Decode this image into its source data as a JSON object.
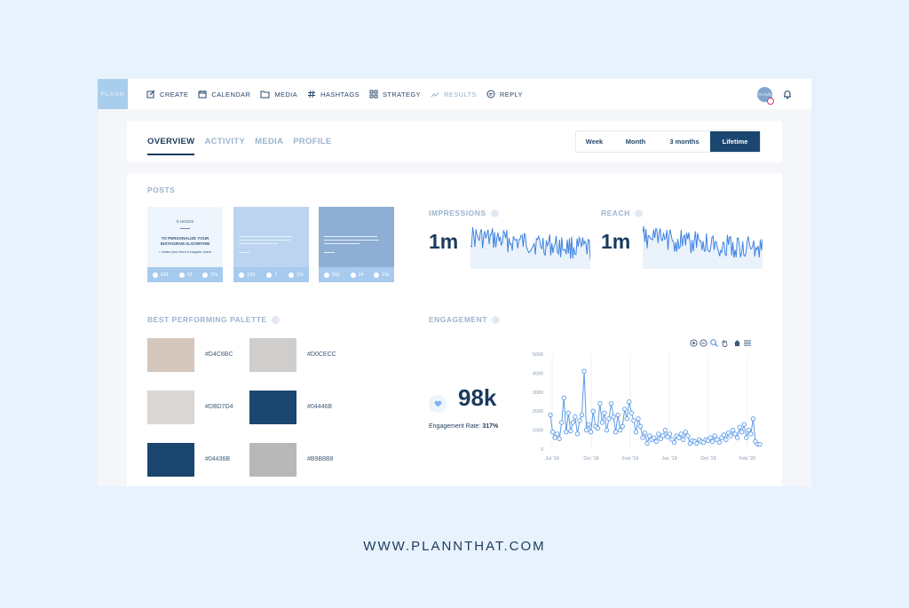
{
  "app": {
    "logo_text": "PLANN",
    "avatar_text": "PLANN",
    "nav": [
      {
        "label": "CREATE",
        "icon": "edit-icon"
      },
      {
        "label": "CALENDAR",
        "icon": "calendar-icon"
      },
      {
        "label": "MEDIA",
        "icon": "folder-icon"
      },
      {
        "label": "HASHTAGS",
        "icon": "hash-icon"
      },
      {
        "label": "STRATEGY",
        "icon": "grid-icon"
      },
      {
        "label": "RESULTS",
        "icon": "trend-icon",
        "active": true
      },
      {
        "label": "REPLY",
        "icon": "chat-icon"
      }
    ]
  },
  "tabs": {
    "items": [
      "OVERVIEW",
      "ACTIVITY",
      "MEDIA",
      "PROFILE"
    ],
    "active": "OVERVIEW"
  },
  "ranges": {
    "items": [
      "Week",
      "Month",
      "3 months",
      "Lifetime"
    ],
    "active": "Lifetime"
  },
  "posts": {
    "label": "POSTS",
    "items": [
      {
        "likes": "241",
        "comments": "15",
        "saves": "1%",
        "head": "5 HACKS",
        "title": "TO PERSONALIZE YOUR INSTAGRAM ALGORITHM",
        "sub": "+ make your feed a happier place",
        "bg": "#eef5fd"
      },
      {
        "likes": "193",
        "comments": "7",
        "saves": "1%",
        "bg": "#bcd4ef"
      },
      {
        "likes": "241",
        "comments": "24",
        "saves": "1%",
        "bg": "#8eaed3"
      }
    ]
  },
  "impressions": {
    "label": "IMPRESSIONS",
    "value": "1m"
  },
  "reach": {
    "label": "REACH",
    "value": "1m"
  },
  "palette": {
    "label": "BEST PERFORMING PALETTE",
    "items": [
      {
        "hex": "#D4C6BC",
        "color": "#D4C6BC"
      },
      {
        "hex": "#D0CECC",
        "color": "#D0CECC"
      },
      {
        "hex": "#DBD7D4",
        "color": "#DBD7D4"
      },
      {
        "hex": "#04446B",
        "color": "#1b4670"
      },
      {
        "hex": "#04436B",
        "color": "#1b4670"
      },
      {
        "hex": "#B9B8B8",
        "color": "#B9B8B8"
      }
    ]
  },
  "engagement": {
    "label": "ENGAGEMENT",
    "value": "98k",
    "rate_label": "Engagement Rate:",
    "rate_value": "317%"
  },
  "chart_data": {
    "type": "line",
    "ylim": [
      0,
      5000
    ],
    "yticks": [
      "5000",
      "4000",
      "3000",
      "2000",
      "1000",
      "0"
    ],
    "xticks": [
      "Jul '18",
      "Oct '18",
      "Feb '19",
      "Jun '19",
      "Oct '19",
      "Feb '20"
    ],
    "grid": true,
    "series": [
      {
        "color": "#5b9ae8",
        "values": [
          1800,
          900,
          600,
          800,
          550,
          1400,
          2700,
          900,
          1900,
          950,
          1400,
          1700,
          800,
          1500,
          1800,
          4100,
          1000,
          1300,
          900,
          2000,
          1200,
          1100,
          2400,
          1400,
          1900,
          1000,
          1600,
          2400,
          1700,
          900,
          1800,
          1000,
          1200,
          2100,
          1600,
          2500,
          1900,
          1500,
          900,
          1600,
          1200,
          600,
          850,
          300,
          700,
          500,
          600,
          400,
          800,
          550,
          700,
          1000,
          650,
          800,
          500,
          350,
          700,
          600,
          800,
          500,
          900,
          700,
          300,
          450,
          400,
          300,
          500,
          400,
          350,
          500,
          450,
          600,
          400,
          700,
          500,
          350,
          600,
          750,
          500,
          850,
          700,
          1000,
          800,
          600,
          1150,
          900,
          1300,
          600,
          1000,
          800,
          1600,
          400,
          250,
          250
        ]
      }
    ]
  },
  "footer": {
    "text": "WWW.PLANNTHAT.COM"
  }
}
